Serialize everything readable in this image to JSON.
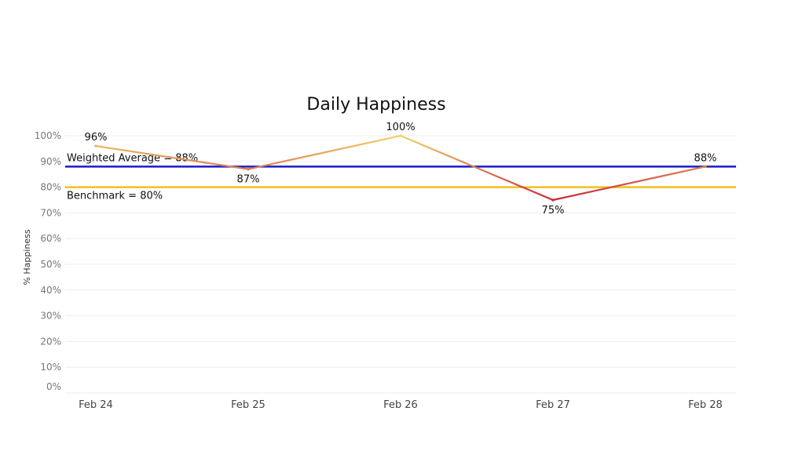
{
  "chart_data": {
    "type": "line",
    "title": "Daily Happiness",
    "ylabel": "% Happiness",
    "xlabel": "",
    "categories": [
      "Feb 24",
      "Feb 25",
      "Feb 26",
      "Feb 27",
      "Feb 28"
    ],
    "values": [
      96,
      87,
      100,
      75,
      88
    ],
    "value_labels": [
      "96%",
      "87%",
      "100%",
      "75%",
      "88%"
    ],
    "ylim": [
      0,
      100
    ],
    "yticks": [
      0,
      10,
      20,
      30,
      40,
      50,
      60,
      70,
      80,
      90,
      100
    ],
    "ytick_labels": [
      "0%",
      "10%",
      "20%",
      "30%",
      "40%",
      "50%",
      "60%",
      "70%",
      "80%",
      "90%",
      "100%"
    ],
    "reference_lines": [
      {
        "label": "Weighted Average = 88%",
        "value": 88,
        "color": "#1a1acc"
      },
      {
        "label": "Benchmark = 80%",
        "value": 80,
        "color": "#f0c020"
      }
    ],
    "line_color_low": "#c8283a",
    "line_color_high": "#f2d36b",
    "grid": true,
    "legend": "none"
  }
}
